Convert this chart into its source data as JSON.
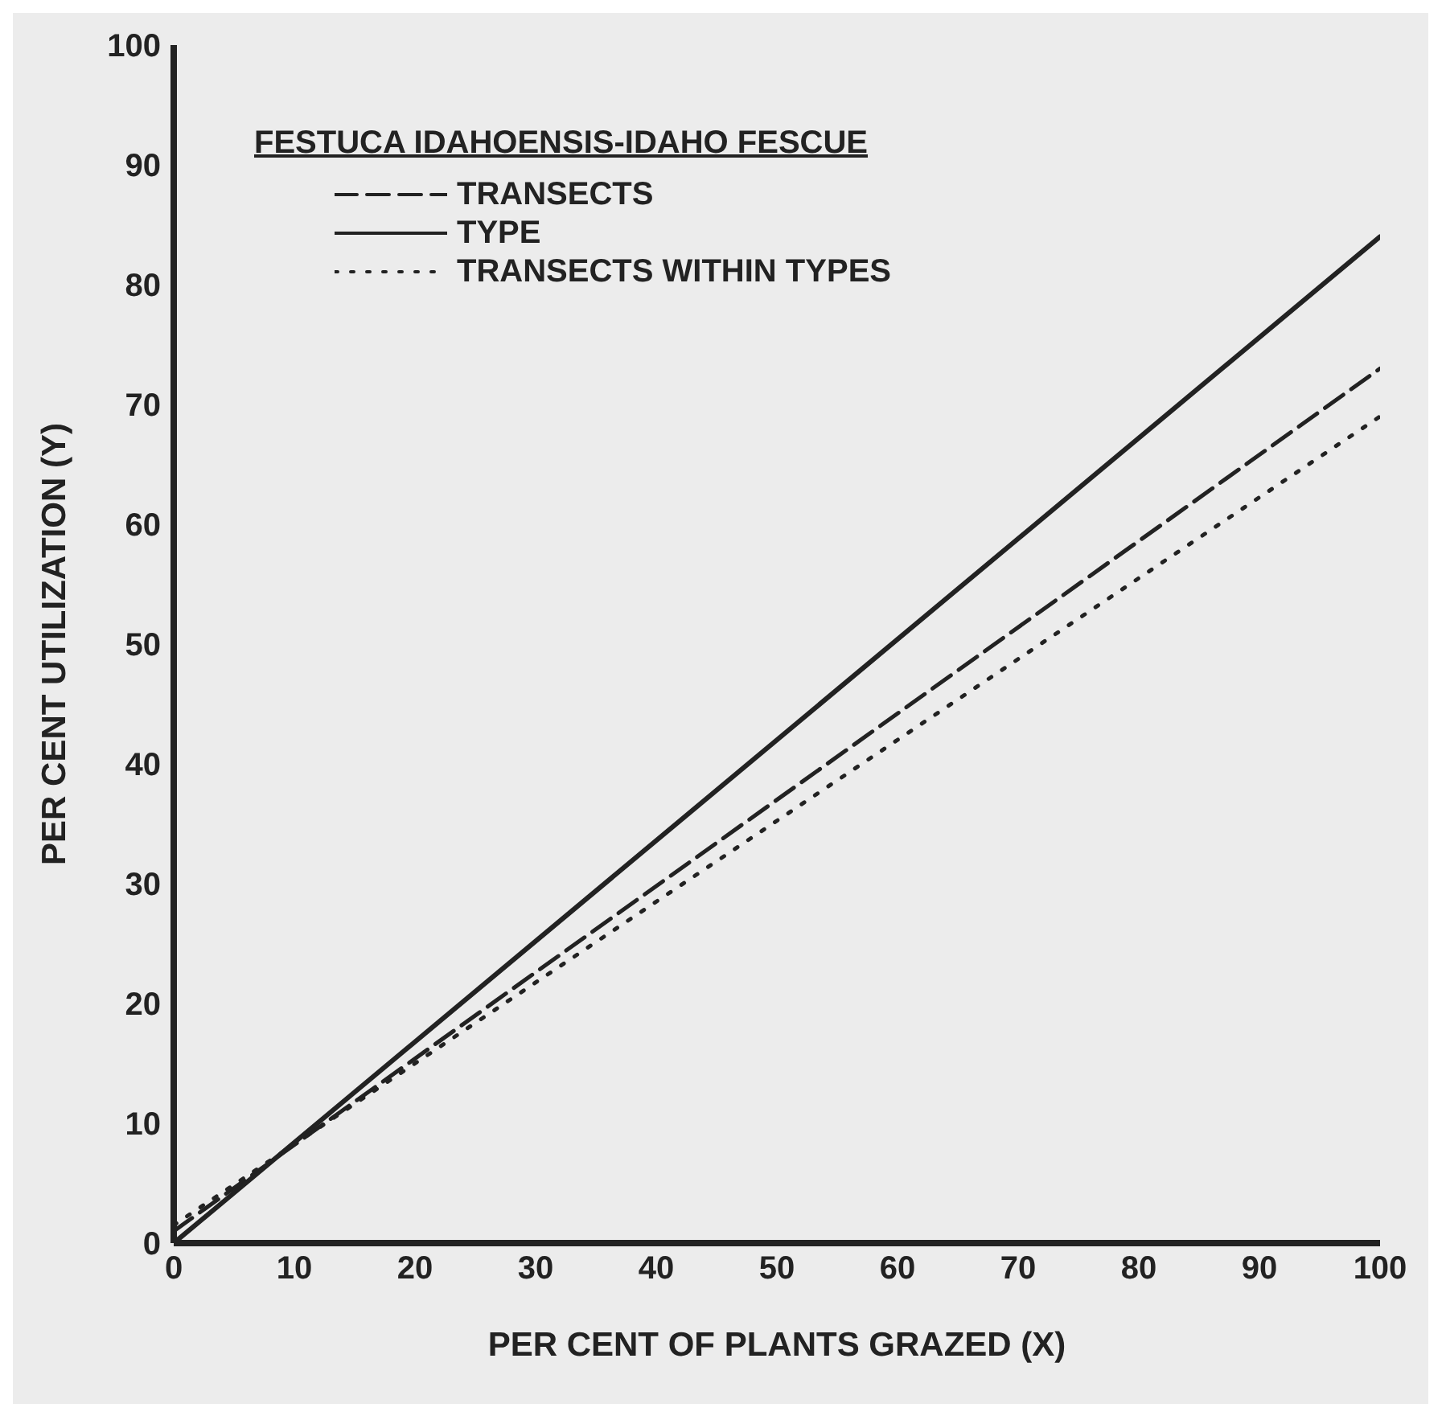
{
  "chart_data": {
    "type": "line",
    "title": "FESTUCA IDAHOENSIS-IDAHO FESCUE",
    "xlabel": "PER CENT OF PLANTS GRAZED (X)",
    "ylabel": "PER CENT UTILIZATION (Y)",
    "xlim": [
      0,
      100
    ],
    "ylim": [
      0,
      100
    ],
    "xticks": [
      0,
      10,
      20,
      30,
      40,
      50,
      60,
      70,
      80,
      90,
      100
    ],
    "yticks": [
      0,
      10,
      20,
      30,
      40,
      50,
      60,
      70,
      80,
      90,
      100
    ],
    "grid": false,
    "legend": "top left",
    "marker": "none",
    "x": [
      0,
      100
    ],
    "series": [
      {
        "name": "TRANSECTS",
        "color": "#222222",
        "line_style": "dashed",
        "values": [
          1,
          73
        ]
      },
      {
        "name": "TYPE",
        "color": "#222222",
        "line_style": "solid",
        "values": [
          0,
          84
        ]
      },
      {
        "name": "TRANSECTS WITHIN TYPES",
        "color": "#222222",
        "line_style": "dotted",
        "values": [
          1.5,
          69
        ]
      }
    ]
  }
}
